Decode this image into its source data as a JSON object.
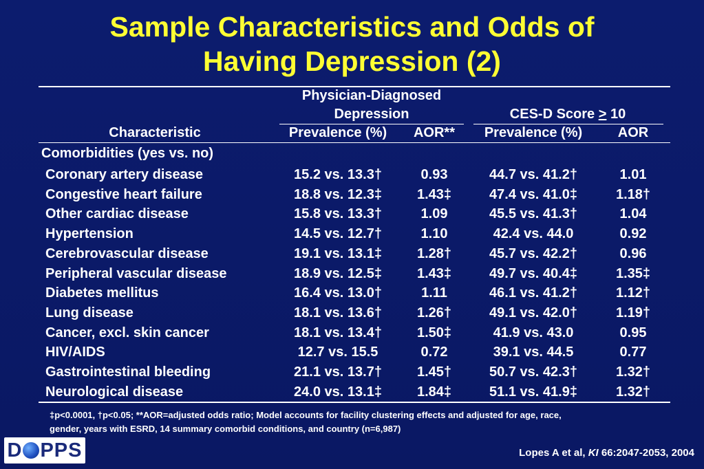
{
  "title_line1": "Sample Characteristics and Odds of",
  "title_line2": "Having Depression (2)",
  "header": {
    "characteristic": "Characteristic",
    "group1_line1": "Physician-Diagnosed",
    "group1_line2": "Depression",
    "group2_prefix": "CES-D Score ",
    "group2_symbol": ">",
    "group2_suffix": " 10",
    "prev1": "Prevalence (%)",
    "aor1": "AOR**",
    "prev2": "Prevalence (%)",
    "aor2": "AOR"
  },
  "section_label": "Comorbidities (yes vs. no)",
  "rows": [
    {
      "label": "Coronary artery disease",
      "prev1": "15.2 vs. 13.3†",
      "aor1": "0.93",
      "prev2": "44.7 vs. 41.2†",
      "aor2": "1.01"
    },
    {
      "label": "Congestive heart failure",
      "prev1": "18.8 vs. 12.3‡",
      "aor1": "1.43‡",
      "prev2": "47.4 vs. 41.0‡",
      "aor2": "1.18†"
    },
    {
      "label": "Other cardiac disease",
      "prev1": "15.8 vs. 13.3†",
      "aor1": "1.09",
      "prev2": "45.5 vs. 41.3†",
      "aor2": "1.04"
    },
    {
      "label": "Hypertension",
      "prev1": "14.5 vs. 12.7†",
      "aor1": "1.10",
      "prev2": "42.4 vs. 44.0",
      "aor2": "0.92"
    },
    {
      "label": "Cerebrovascular disease",
      "prev1": "19.1 vs. 13.1‡",
      "aor1": "1.28†",
      "prev2": "45.7 vs. 42.2†",
      "aor2": "0.96"
    },
    {
      "label": "Peripheral vascular disease",
      "prev1": "18.9 vs. 12.5‡",
      "aor1": "1.43‡",
      "prev2": "49.7 vs. 40.4‡",
      "aor2": "1.35‡"
    },
    {
      "label": "Diabetes mellitus",
      "prev1": "16.4 vs. 13.0†",
      "aor1": "1.11",
      "prev2": "46.1 vs. 41.2†",
      "aor2": "1.12†"
    },
    {
      "label": "Lung disease",
      "prev1": "18.1 vs. 13.6†",
      "aor1": "1.26†",
      "prev2": "49.1 vs. 42.0†",
      "aor2": "1.19†"
    },
    {
      "label": "Cancer, excl. skin cancer",
      "prev1": "18.1 vs. 13.4†",
      "aor1": "1.50‡",
      "prev2": "41.9 vs. 43.0",
      "aor2": "0.95"
    },
    {
      "label": "HIV/AIDS",
      "prev1": "12.7 vs. 15.5",
      "aor1": "0.72",
      "prev2": "39.1 vs. 44.5",
      "aor2": "0.77"
    },
    {
      "label": "Gastrointestinal bleeding",
      "prev1": "21.1 vs. 13.7†",
      "aor1": "1.45†",
      "prev2": "50.7 vs. 42.3†",
      "aor2": "1.32†"
    },
    {
      "label": "Neurological disease",
      "prev1": "24.0 vs. 13.1‡",
      "aor1": "1.84‡",
      "prev2": "51.1 vs. 41.9‡",
      "aor2": "1.32†"
    }
  ],
  "footnote_line1": "‡p<0.0001, †p<0.05; **AOR=adjusted odds ratio;  Model accounts for facility clustering effects and adjusted for age, race,",
  "footnote_line2": "gender, years with ESRD, 14 summary comorbid conditions, and country (n=6,987)",
  "logo_left": "D",
  "logo_right": "PPS",
  "citation_prefix": "Lopes A et al, ",
  "citation_journal": "KI",
  "citation_suffix": " 66:2047-2053, 2004",
  "colors": {
    "background": "#0a1a66",
    "title": "#ffff33",
    "text": "#ffffff"
  }
}
